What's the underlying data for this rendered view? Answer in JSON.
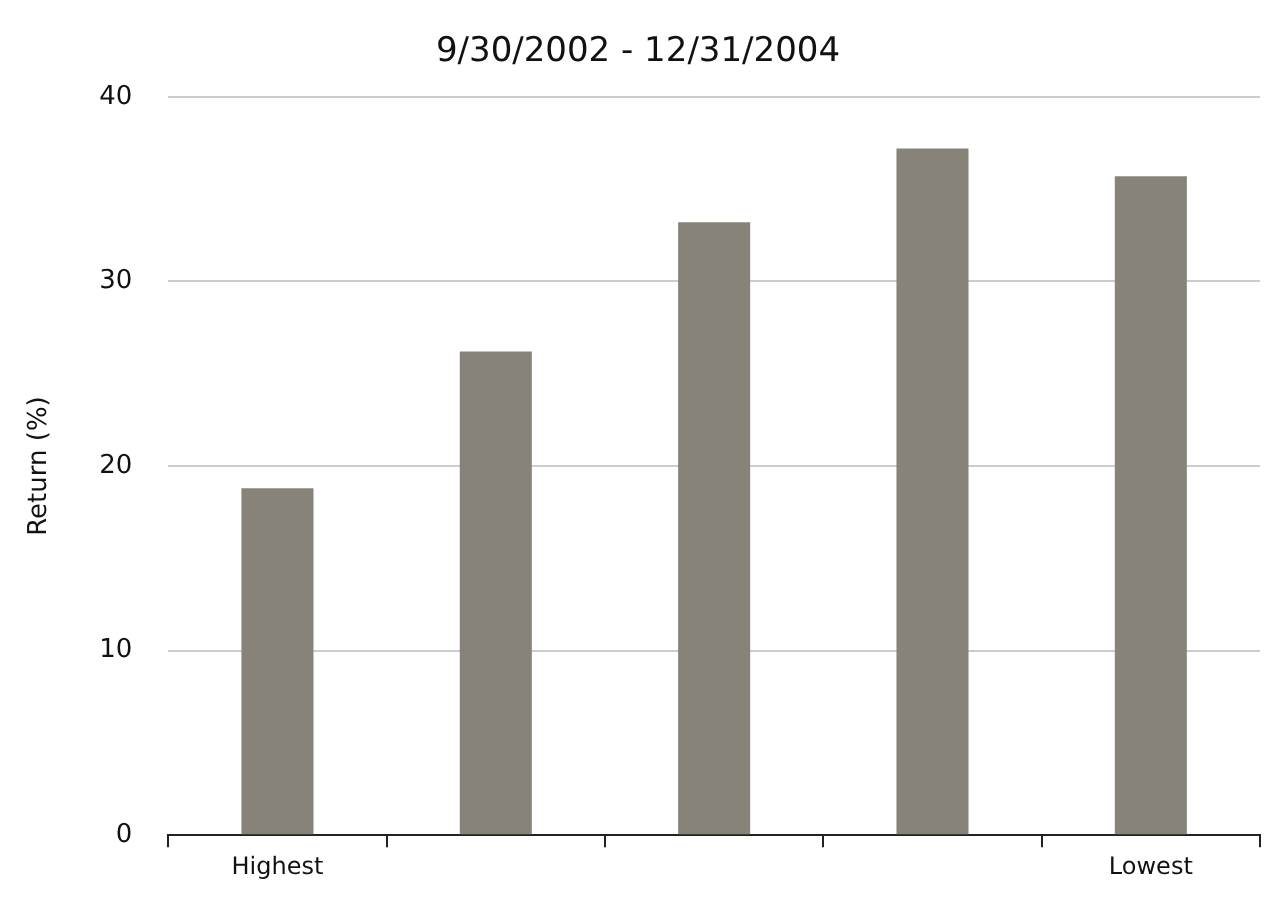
{
  "chart_data": {
    "type": "bar",
    "title": "9/30/2002 - 12/31/2004",
    "ylabel": "Return (%)",
    "categories": [
      "Highest",
      null,
      null,
      null,
      "Lowest"
    ],
    "series": [
      {
        "color": "#878379",
        "values": [
          18.8,
          26.2,
          33.2,
          37.2,
          35.7
        ]
      }
    ],
    "ylim": [
      0,
      40
    ],
    "yticks": [
      0,
      10,
      20,
      30,
      40
    ],
    "grid": "y",
    "legend": false
  }
}
